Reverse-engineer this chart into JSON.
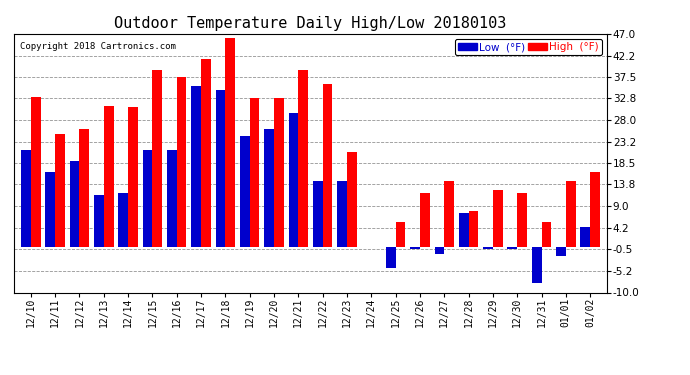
{
  "title": "Outdoor Temperature Daily High/Low 20180103",
  "copyright": "Copyright 2018 Cartronics.com",
  "legend_low": "Low  (°F)",
  "legend_high": "High  (°F)",
  "dates": [
    "12/10",
    "12/11",
    "12/12",
    "12/13",
    "12/14",
    "12/15",
    "12/16",
    "12/17",
    "12/18",
    "12/19",
    "12/20",
    "12/21",
    "12/22",
    "12/23",
    "12/24",
    "12/25",
    "12/26",
    "12/27",
    "12/28",
    "12/29",
    "12/30",
    "12/31",
    "01/01",
    "01/02"
  ],
  "highs": [
    33.0,
    25.0,
    26.0,
    31.0,
    30.8,
    39.0,
    37.5,
    41.5,
    46.0,
    32.8,
    32.8,
    39.0,
    36.0,
    21.0,
    null,
    5.5,
    12.0,
    14.5,
    8.0,
    12.5,
    12.0,
    5.5,
    14.5,
    16.5
  ],
  "lows": [
    21.5,
    16.5,
    19.0,
    11.5,
    12.0,
    21.5,
    21.5,
    35.5,
    34.5,
    24.5,
    26.0,
    29.5,
    14.5,
    14.5,
    null,
    -4.5,
    -0.5,
    -1.5,
    7.5,
    -0.5,
    -0.5,
    -8.0,
    -2.0,
    4.5
  ],
  "ylim": [
    -10.0,
    47.0
  ],
  "yticks": [
    -10.0,
    -5.2,
    -0.5,
    4.2,
    9.0,
    13.8,
    18.5,
    23.2,
    28.0,
    32.8,
    37.5,
    42.2,
    47.0
  ],
  "high_color": "#ff0000",
  "low_color": "#0000cc",
  "bg_color": "#ffffff",
  "grid_color": "#888888",
  "title_fontsize": 11,
  "bar_width": 0.4,
  "figwidth": 6.9,
  "figheight": 3.75,
  "dpi": 100
}
